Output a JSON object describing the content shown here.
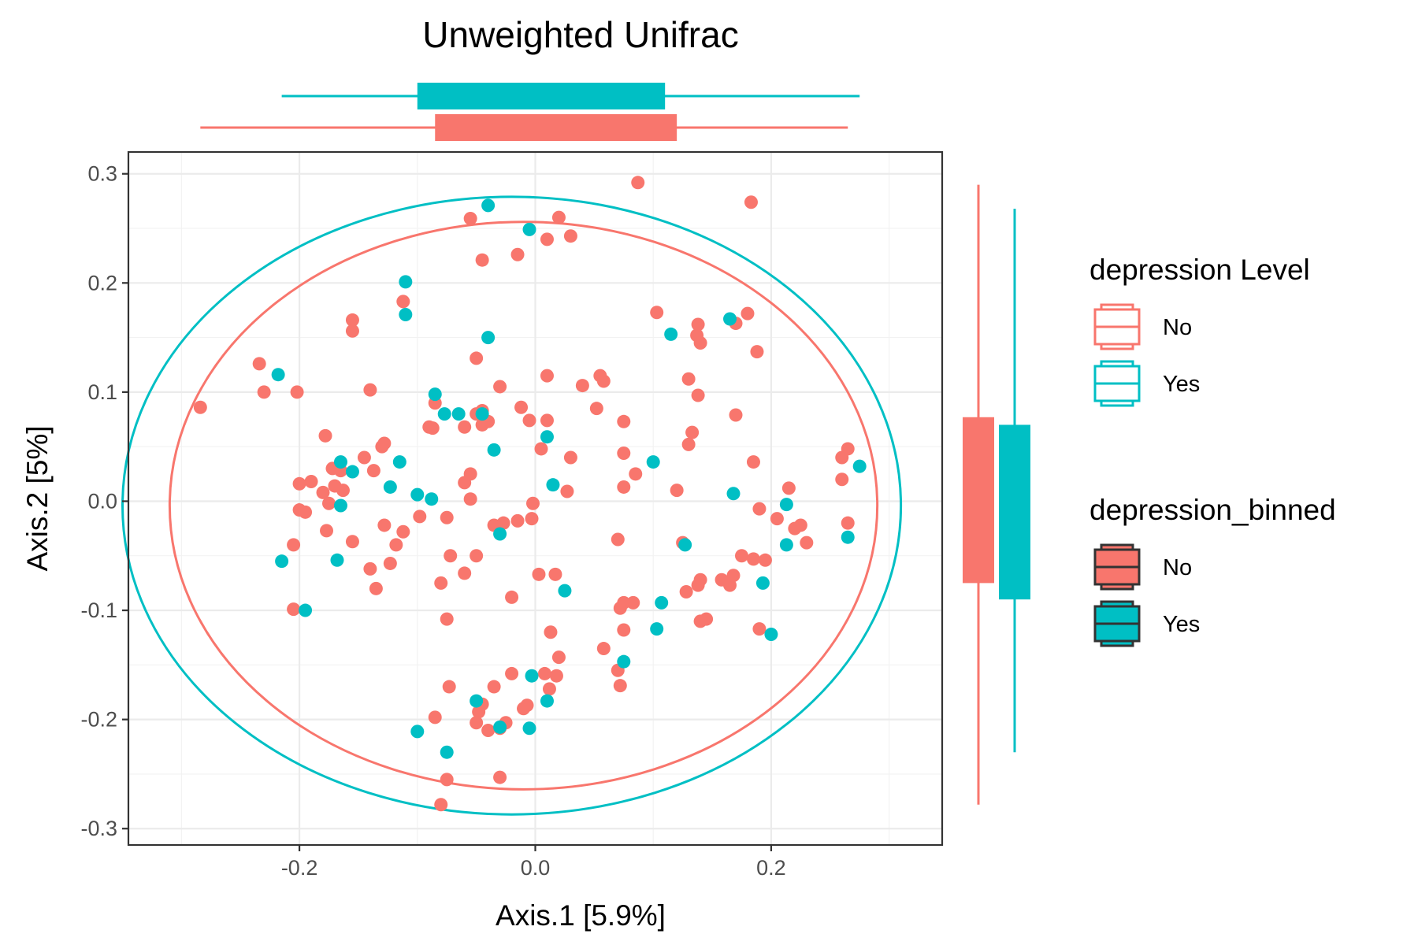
{
  "chart_data": {
    "type": "scatter",
    "title": "Unweighted Unifrac",
    "xlabel": "Axis.1   [5.9%]",
    "ylabel": "Axis.2   [5%]",
    "xlim": [
      -0.345,
      0.345
    ],
    "ylim": [
      -0.315,
      0.32
    ],
    "x_ticks": [
      -0.2,
      0.0,
      0.2
    ],
    "x_tick_labels": [
      "-0.2",
      "0.0",
      "0.2"
    ],
    "y_ticks": [
      -0.3,
      -0.2,
      -0.1,
      0.0,
      0.1,
      0.2,
      0.3
    ],
    "y_tick_labels": [
      "-0.3",
      "-0.2",
      "-0.1",
      "0.0",
      "0.1",
      "0.2",
      "0.3"
    ],
    "grid": true,
    "colors": {
      "No": "#F8766D",
      "Yes": "#00BFC4",
      "legend_outline": "#333333"
    },
    "legend": [
      {
        "title": "depression Level",
        "style": "outline",
        "entries": [
          {
            "label": "No",
            "color": "#F8766D"
          },
          {
            "label": "Yes",
            "color": "#00BFC4"
          }
        ]
      },
      {
        "title": "depression_binned",
        "style": "filled",
        "entries": [
          {
            "label": "No",
            "color": "#F8766D"
          },
          {
            "label": "Yes",
            "color": "#00BFC4"
          }
        ]
      }
    ],
    "legend_placement": "right",
    "ellipses": [
      {
        "group": "No",
        "center": [
          -0.01,
          -0.004
        ],
        "rx": 0.3,
        "ry": 0.26
      },
      {
        "group": "Yes",
        "center": [
          -0.02,
          -0.004
        ],
        "rx": 0.33,
        "ry": 0.283
      }
    ],
    "marginal_boxplots": {
      "x": [
        {
          "group": "No",
          "whisker_low": -0.284,
          "q1": -0.085,
          "q3": 0.12,
          "whisker_high": 0.265
        },
        {
          "group": "Yes",
          "whisker_low": -0.215,
          "q1": -0.1,
          "q3": 0.11,
          "whisker_high": 0.275
        }
      ],
      "y": [
        {
          "group": "No",
          "whisker_low": -0.278,
          "q1": -0.075,
          "q3": 0.077,
          "whisker_high": 0.29
        },
        {
          "group": "Yes",
          "whisker_low": -0.23,
          "q1": -0.09,
          "q3": 0.07,
          "whisker_high": 0.268
        }
      ]
    },
    "series": [
      {
        "name": "No",
        "points": [
          [
            -0.284,
            0.086
          ],
          [
            -0.234,
            0.126
          ],
          [
            -0.23,
            0.1
          ],
          [
            -0.202,
            0.1
          ],
          [
            -0.2,
            0.016
          ],
          [
            -0.19,
            0.018
          ],
          [
            -0.2,
            -0.008
          ],
          [
            -0.195,
            -0.01
          ],
          [
            -0.205,
            -0.04
          ],
          [
            -0.205,
            -0.099
          ],
          [
            -0.18,
            0.008
          ],
          [
            -0.175,
            -0.002
          ],
          [
            -0.17,
            0.014
          ],
          [
            -0.165,
            0.028
          ],
          [
            -0.172,
            0.03
          ],
          [
            -0.163,
            0.01
          ],
          [
            -0.177,
            -0.027
          ],
          [
            -0.178,
            0.06
          ],
          [
            -0.155,
            0.166
          ],
          [
            -0.155,
            0.156
          ],
          [
            -0.14,
            0.102
          ],
          [
            -0.145,
            0.04
          ],
          [
            -0.137,
            0.028
          ],
          [
            -0.13,
            0.05
          ],
          [
            -0.128,
            0.053
          ],
          [
            -0.155,
            -0.037
          ],
          [
            -0.128,
            -0.022
          ],
          [
            -0.14,
            -0.062
          ],
          [
            -0.135,
            -0.08
          ],
          [
            -0.123,
            -0.057
          ],
          [
            -0.118,
            -0.04
          ],
          [
            -0.112,
            -0.028
          ],
          [
            -0.112,
            0.183
          ],
          [
            -0.085,
            0.09
          ],
          [
            -0.09,
            0.068
          ],
          [
            -0.087,
            0.067
          ],
          [
            -0.098,
            -0.014
          ],
          [
            -0.08,
            -0.075
          ],
          [
            -0.055,
            0.259
          ],
          [
            -0.045,
            0.221
          ],
          [
            -0.05,
            0.131
          ],
          [
            -0.05,
            0.08
          ],
          [
            -0.045,
            0.083
          ],
          [
            -0.03,
            0.105
          ],
          [
            -0.06,
            0.068
          ],
          [
            -0.055,
            0.025
          ],
          [
            -0.06,
            0.017
          ],
          [
            -0.055,
            0.002
          ],
          [
            -0.075,
            -0.015
          ],
          [
            -0.072,
            -0.05
          ],
          [
            -0.06,
            -0.066
          ],
          [
            -0.05,
            -0.05
          ],
          [
            -0.035,
            -0.022
          ],
          [
            -0.027,
            -0.02
          ],
          [
            -0.04,
            0.073
          ],
          [
            -0.045,
            0.07
          ],
          [
            -0.015,
            0.226
          ],
          [
            -0.012,
            0.086
          ],
          [
            -0.005,
            0.074
          ],
          [
            0.01,
            0.074
          ],
          [
            0.005,
            0.048
          ],
          [
            -0.002,
            -0.002
          ],
          [
            -0.003,
            -0.016
          ],
          [
            -0.015,
            -0.018
          ],
          [
            0.03,
            0.04
          ],
          [
            0.01,
            0.115
          ],
          [
            0.01,
            0.24
          ],
          [
            0.02,
            0.26
          ],
          [
            0.03,
            0.243
          ],
          [
            0.04,
            0.106
          ],
          [
            0.055,
            0.115
          ],
          [
            0.058,
            0.11
          ],
          [
            0.052,
            0.085
          ],
          [
            0.075,
            0.073
          ],
          [
            0.075,
            0.044
          ],
          [
            0.085,
            0.025
          ],
          [
            0.075,
            0.013
          ],
          [
            0.027,
            0.009
          ],
          [
            0.003,
            -0.067
          ],
          [
            0.017,
            -0.067
          ],
          [
            -0.02,
            -0.088
          ],
          [
            -0.075,
            -0.108
          ],
          [
            0.013,
            -0.12
          ],
          [
            0.02,
            -0.143
          ],
          [
            0.018,
            -0.16
          ],
          [
            -0.02,
            -0.158
          ],
          [
            -0.035,
            -0.17
          ],
          [
            -0.048,
            -0.193
          ],
          [
            -0.05,
            -0.203
          ],
          [
            -0.045,
            -0.186
          ],
          [
            -0.04,
            -0.21
          ],
          [
            -0.03,
            -0.208
          ],
          [
            -0.025,
            -0.203
          ],
          [
            -0.01,
            -0.19
          ],
          [
            -0.007,
            -0.187
          ],
          [
            0.012,
            -0.172
          ],
          [
            0.008,
            -0.158
          ],
          [
            -0.085,
            -0.198
          ],
          [
            -0.073,
            -0.17
          ],
          [
            -0.075,
            -0.255
          ],
          [
            -0.08,
            -0.278
          ],
          [
            -0.03,
            -0.253
          ],
          [
            0.058,
            -0.135
          ],
          [
            0.07,
            -0.155
          ],
          [
            0.075,
            -0.118
          ],
          [
            0.072,
            -0.098
          ],
          [
            0.075,
            -0.093
          ],
          [
            0.083,
            -0.093
          ],
          [
            0.072,
            -0.169
          ],
          [
            0.07,
            -0.035
          ],
          [
            0.087,
            0.292
          ],
          [
            0.103,
            0.173
          ],
          [
            0.12,
            0.01
          ],
          [
            0.125,
            -0.038
          ],
          [
            0.13,
            0.052
          ],
          [
            0.133,
            0.063
          ],
          [
            0.13,
            0.112
          ],
          [
            0.138,
            0.097
          ],
          [
            0.137,
            0.152
          ],
          [
            0.138,
            0.162
          ],
          [
            0.14,
            0.145
          ],
          [
            0.128,
            -0.083
          ],
          [
            0.14,
            -0.072
          ],
          [
            0.138,
            -0.077
          ],
          [
            0.14,
            -0.11
          ],
          [
            0.145,
            -0.108
          ],
          [
            0.158,
            -0.072
          ],
          [
            0.165,
            -0.077
          ],
          [
            0.168,
            -0.068
          ],
          [
            0.175,
            -0.05
          ],
          [
            0.185,
            -0.053
          ],
          [
            0.17,
            0.079
          ],
          [
            0.18,
            0.172
          ],
          [
            0.17,
            0.163
          ],
          [
            0.188,
            0.137
          ],
          [
            0.183,
            0.274
          ],
          [
            0.185,
            0.036
          ],
          [
            0.19,
            -0.007
          ],
          [
            0.195,
            -0.054
          ],
          [
            0.19,
            -0.117
          ],
          [
            0.205,
            -0.016
          ],
          [
            0.215,
            0.012
          ],
          [
            0.22,
            -0.025
          ],
          [
            0.225,
            -0.022
          ],
          [
            0.23,
            -0.038
          ],
          [
            0.26,
            0.04
          ],
          [
            0.26,
            0.02
          ],
          [
            0.265,
            0.048
          ],
          [
            0.265,
            -0.02
          ]
        ]
      },
      {
        "name": "Yes",
        "points": [
          [
            -0.218,
            0.116
          ],
          [
            -0.215,
            -0.055
          ],
          [
            -0.195,
            -0.1
          ],
          [
            -0.165,
            0.036
          ],
          [
            -0.155,
            0.027
          ],
          [
            -0.165,
            -0.004
          ],
          [
            -0.168,
            -0.054
          ],
          [
            -0.11,
            0.201
          ],
          [
            -0.11,
            0.171
          ],
          [
            -0.115,
            0.036
          ],
          [
            -0.123,
            0.013
          ],
          [
            -0.1,
            0.006
          ],
          [
            -0.085,
            0.098
          ],
          [
            -0.077,
            0.08
          ],
          [
            -0.065,
            0.08
          ],
          [
            -0.088,
            0.002
          ],
          [
            -0.04,
            0.271
          ],
          [
            -0.04,
            0.15
          ],
          [
            -0.035,
            0.047
          ],
          [
            -0.03,
            -0.03
          ],
          [
            -0.005,
            0.249
          ],
          [
            0.01,
            0.059
          ],
          [
            0.015,
            0.015
          ],
          [
            0.025,
            -0.082
          ],
          [
            0.1,
            0.036
          ],
          [
            0.115,
            0.153
          ],
          [
            0.127,
            -0.04
          ],
          [
            0.107,
            -0.093
          ],
          [
            0.103,
            -0.117
          ],
          [
            0.075,
            -0.147
          ],
          [
            0.165,
            0.167
          ],
          [
            0.168,
            0.007
          ],
          [
            0.193,
            -0.075
          ],
          [
            0.2,
            -0.122
          ],
          [
            0.213,
            -0.003
          ],
          [
            0.213,
            -0.04
          ],
          [
            0.265,
            -0.033
          ],
          [
            0.275,
            0.032
          ],
          [
            -0.05,
            -0.183
          ],
          [
            -0.03,
            -0.207
          ],
          [
            -0.003,
            -0.16
          ],
          [
            0.01,
            -0.183
          ],
          [
            -0.005,
            -0.208
          ],
          [
            -0.075,
            -0.23
          ],
          [
            -0.1,
            -0.211
          ],
          [
            -0.045,
            0.08
          ]
        ]
      }
    ]
  }
}
